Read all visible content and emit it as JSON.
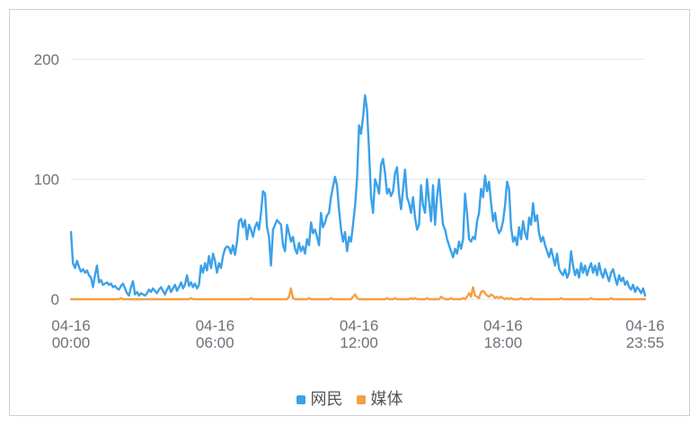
{
  "chart_data": {
    "type": "line",
    "x": [
      "04-16 00:00",
      "04-16 00:05",
      "04-16 00:10",
      "04-16 00:15",
      "04-16 00:20",
      "04-16 00:25",
      "04-16 00:30",
      "04-16 00:35",
      "04-16 00:40",
      "04-16 00:45",
      "04-16 00:50",
      "04-16 00:55",
      "04-16 01:00",
      "04-16 01:05",
      "04-16 01:10",
      "04-16 01:15",
      "04-16 01:20",
      "04-16 01:25",
      "04-16 01:30",
      "04-16 01:35",
      "04-16 01:40",
      "04-16 01:45",
      "04-16 01:50",
      "04-16 01:55",
      "04-16 02:00",
      "04-16 02:05",
      "04-16 02:10",
      "04-16 02:15",
      "04-16 02:20",
      "04-16 02:25",
      "04-16 02:30",
      "04-16 02:35",
      "04-16 02:40",
      "04-16 02:45",
      "04-16 02:50",
      "04-16 02:55",
      "04-16 03:00",
      "04-16 03:05",
      "04-16 03:10",
      "04-16 03:15",
      "04-16 03:20",
      "04-16 03:25",
      "04-16 03:30",
      "04-16 03:35",
      "04-16 03:40",
      "04-16 03:45",
      "04-16 03:50",
      "04-16 03:55",
      "04-16 04:00",
      "04-16 04:05",
      "04-16 04:10",
      "04-16 04:15",
      "04-16 04:20",
      "04-16 04:25",
      "04-16 04:30",
      "04-16 04:35",
      "04-16 04:40",
      "04-16 04:45",
      "04-16 04:50",
      "04-16 04:55",
      "04-16 05:00",
      "04-16 05:05",
      "04-16 05:10",
      "04-16 05:15",
      "04-16 05:20",
      "04-16 05:25",
      "04-16 05:30",
      "04-16 05:35",
      "04-16 05:40",
      "04-16 05:45",
      "04-16 05:50",
      "04-16 05:55",
      "04-16 06:00",
      "04-16 06:05",
      "04-16 06:10",
      "04-16 06:15",
      "04-16 06:20",
      "04-16 06:25",
      "04-16 06:30",
      "04-16 06:35",
      "04-16 06:40",
      "04-16 06:45",
      "04-16 06:50",
      "04-16 06:55",
      "04-16 07:00",
      "04-16 07:05",
      "04-16 07:10",
      "04-16 07:15",
      "04-16 07:20",
      "04-16 07:25",
      "04-16 07:30",
      "04-16 07:35",
      "04-16 07:40",
      "04-16 07:45",
      "04-16 07:50",
      "04-16 07:55",
      "04-16 08:00",
      "04-16 08:05",
      "04-16 08:10",
      "04-16 08:15",
      "04-16 08:20",
      "04-16 08:25",
      "04-16 08:30",
      "04-16 08:35",
      "04-16 08:40",
      "04-16 08:45",
      "04-16 08:50",
      "04-16 08:55",
      "04-16 09:00",
      "04-16 09:05",
      "04-16 09:10",
      "04-16 09:15",
      "04-16 09:20",
      "04-16 09:25",
      "04-16 09:30",
      "04-16 09:35",
      "04-16 09:40",
      "04-16 09:45",
      "04-16 09:50",
      "04-16 09:55",
      "04-16 10:00",
      "04-16 10:05",
      "04-16 10:10",
      "04-16 10:15",
      "04-16 10:20",
      "04-16 10:25",
      "04-16 10:30",
      "04-16 10:35",
      "04-16 10:40",
      "04-16 10:45",
      "04-16 10:50",
      "04-16 10:55",
      "04-16 11:00",
      "04-16 11:05",
      "04-16 11:10",
      "04-16 11:15",
      "04-16 11:20",
      "04-16 11:25",
      "04-16 11:30",
      "04-16 11:35",
      "04-16 11:40",
      "04-16 11:45",
      "04-16 11:50",
      "04-16 11:55",
      "04-16 12:00",
      "04-16 12:05",
      "04-16 12:10",
      "04-16 12:15",
      "04-16 12:20",
      "04-16 12:25",
      "04-16 12:30",
      "04-16 12:35",
      "04-16 12:40",
      "04-16 12:45",
      "04-16 12:50",
      "04-16 12:55",
      "04-16 13:00",
      "04-16 13:05",
      "04-16 13:10",
      "04-16 13:15",
      "04-16 13:20",
      "04-16 13:25",
      "04-16 13:30",
      "04-16 13:35",
      "04-16 13:40",
      "04-16 13:45",
      "04-16 13:50",
      "04-16 13:55",
      "04-16 14:00",
      "04-16 14:05",
      "04-16 14:10",
      "04-16 14:15",
      "04-16 14:20",
      "04-16 14:25",
      "04-16 14:30",
      "04-16 14:35",
      "04-16 14:40",
      "04-16 14:45",
      "04-16 14:50",
      "04-16 14:55",
      "04-16 15:00",
      "04-16 15:05",
      "04-16 15:10",
      "04-16 15:15",
      "04-16 15:20",
      "04-16 15:25",
      "04-16 15:30",
      "04-16 15:35",
      "04-16 15:40",
      "04-16 15:45",
      "04-16 15:50",
      "04-16 15:55",
      "04-16 16:00",
      "04-16 16:05",
      "04-16 16:10",
      "04-16 16:15",
      "04-16 16:20",
      "04-16 16:25",
      "04-16 16:30",
      "04-16 16:35",
      "04-16 16:40",
      "04-16 16:45",
      "04-16 16:50",
      "04-16 16:55",
      "04-16 17:00",
      "04-16 17:05",
      "04-16 17:10",
      "04-16 17:15",
      "04-16 17:20",
      "04-16 17:25",
      "04-16 17:30",
      "04-16 17:35",
      "04-16 17:40",
      "04-16 17:45",
      "04-16 17:50",
      "04-16 17:55",
      "04-16 18:00",
      "04-16 18:05",
      "04-16 18:10",
      "04-16 18:15",
      "04-16 18:20",
      "04-16 18:25",
      "04-16 18:30",
      "04-16 18:35",
      "04-16 18:40",
      "04-16 18:45",
      "04-16 18:50",
      "04-16 18:55",
      "04-16 19:00",
      "04-16 19:05",
      "04-16 19:10",
      "04-16 19:15",
      "04-16 19:20",
      "04-16 19:25",
      "04-16 19:30",
      "04-16 19:35",
      "04-16 19:40",
      "04-16 19:45",
      "04-16 19:50",
      "04-16 19:55",
      "04-16 20:00",
      "04-16 20:05",
      "04-16 20:10",
      "04-16 20:15",
      "04-16 20:20",
      "04-16 20:25",
      "04-16 20:30",
      "04-16 20:35",
      "04-16 20:40",
      "04-16 20:45",
      "04-16 20:50",
      "04-16 20:55",
      "04-16 21:00",
      "04-16 21:05",
      "04-16 21:10",
      "04-16 21:15",
      "04-16 21:20",
      "04-16 21:25",
      "04-16 21:30",
      "04-16 21:35",
      "04-16 21:40",
      "04-16 21:45",
      "04-16 21:50",
      "04-16 21:55",
      "04-16 22:00",
      "04-16 22:05",
      "04-16 22:10",
      "04-16 22:15",
      "04-16 22:20",
      "04-16 22:25",
      "04-16 22:30",
      "04-16 22:35",
      "04-16 22:40",
      "04-16 22:45",
      "04-16 22:50",
      "04-16 22:55",
      "04-16 23:00",
      "04-16 23:05",
      "04-16 23:10",
      "04-16 23:15",
      "04-16 23:20",
      "04-16 23:25",
      "04-16 23:30",
      "04-16 23:35",
      "04-16 23:40",
      "04-16 23:45",
      "04-16 23:50",
      "04-16 23:55"
    ],
    "x_tick_labels": [
      "04-16 00:00",
      "04-16 06:00",
      "04-16 12:00",
      "04-16 18:00",
      "04-16 23:55"
    ],
    "y_ticks": [
      0,
      100,
      200
    ],
    "ylim": [
      0,
      200
    ],
    "grid": "horizontal",
    "legend_position": "bottom-center",
    "series": [
      {
        "name": "网民",
        "color": "#3BA1E9",
        "values": [
          56,
          30,
          26,
          32,
          27,
          23,
          25,
          22,
          24,
          20,
          18,
          10,
          20,
          28,
          14,
          16,
          12,
          13,
          14,
          12,
          13,
          10,
          11,
          9,
          8,
          11,
          13,
          9,
          5,
          3,
          10,
          15,
          4,
          6,
          3,
          5,
          4,
          3,
          5,
          8,
          6,
          9,
          7,
          5,
          8,
          10,
          7,
          4,
          8,
          11,
          6,
          9,
          12,
          7,
          10,
          14,
          9,
          12,
          20,
          11,
          14,
          10,
          13,
          9,
          12,
          28,
          22,
          30,
          24,
          36,
          26,
          38,
          32,
          22,
          30,
          26,
          36,
          42,
          44,
          43,
          38,
          45,
          37,
          48,
          65,
          67,
          60,
          66,
          50,
          62,
          58,
          52,
          60,
          64,
          58,
          72,
          90,
          88,
          60,
          52,
          28,
          58,
          62,
          66,
          64,
          62,
          45,
          40,
          62,
          55,
          48,
          52,
          42,
          38,
          47,
          40,
          44,
          38,
          50,
          45,
          64,
          55,
          58,
          52,
          45,
          72,
          60,
          64,
          70,
          72,
          85,
          94,
          102,
          95,
          75,
          58,
          48,
          56,
          40,
          52,
          48,
          62,
          78,
          100,
          145,
          138,
          152,
          170,
          158,
          125,
          85,
          72,
          100,
          95,
          88,
          112,
          117,
          105,
          88,
          92,
          86,
          90,
          105,
          110,
          88,
          75,
          92,
          108,
          85,
          80,
          72,
          85,
          68,
          58,
          62,
          95,
          78,
          72,
          100,
          82,
          65,
          95,
          62,
          85,
          100,
          80,
          62,
          58,
          50,
          45,
          40,
          35,
          42,
          38,
          48,
          42,
          50,
          88,
          72,
          50,
          48,
          52,
          50,
          65,
          72,
          92,
          85,
          103,
          90,
          98,
          80,
          65,
          72,
          60,
          55,
          58,
          65,
          78,
          98,
          92,
          60,
          48,
          52,
          45,
          60,
          50,
          65,
          55,
          50,
          68,
          62,
          80,
          65,
          70,
          55,
          48,
          52,
          45,
          40,
          35,
          42,
          35,
          28,
          38,
          25,
          22,
          20,
          25,
          18,
          22,
          40,
          28,
          20,
          25,
          18,
          30,
          22,
          28,
          20,
          26,
          30,
          22,
          28,
          20,
          30,
          22,
          18,
          25,
          20,
          15,
          22,
          25,
          18,
          12,
          20,
          15,
          18,
          12,
          15,
          10,
          8,
          12,
          6,
          10,
          8,
          5,
          9,
          3
        ]
      },
      {
        "name": "媒体",
        "color": "#F5A043",
        "values": [
          0,
          0,
          0,
          0,
          0,
          0,
          0,
          0,
          0,
          0,
          0,
          0,
          0,
          0,
          0,
          0,
          0,
          0,
          0,
          0,
          0,
          0,
          0,
          0,
          0,
          1,
          0,
          0,
          0,
          0,
          0,
          0,
          0,
          0,
          0,
          0,
          0,
          0,
          0,
          0,
          0,
          0,
          0,
          0,
          0,
          0,
          0,
          0,
          0,
          0,
          0,
          0,
          0,
          0,
          0,
          0,
          0,
          0,
          0,
          0,
          1,
          0,
          0,
          0,
          0,
          0,
          0,
          0,
          0,
          0,
          0,
          0,
          0,
          0,
          0,
          0,
          0,
          0,
          0,
          0,
          0,
          0,
          0,
          0,
          0,
          0,
          0,
          0,
          0,
          0,
          1,
          0,
          0,
          0,
          0,
          0,
          0,
          0,
          0,
          0,
          0,
          0,
          0,
          0,
          0,
          0,
          0,
          0,
          0,
          2,
          9,
          1,
          0,
          0,
          0,
          0,
          0,
          0,
          0,
          1,
          0,
          0,
          0,
          0,
          0,
          0,
          0,
          0,
          0,
          0,
          1,
          0,
          0,
          0,
          0,
          0,
          0,
          0,
          0,
          0,
          0,
          2,
          4,
          1,
          0,
          0,
          0,
          0,
          0,
          0,
          0,
          0,
          0,
          0,
          0,
          0,
          0,
          0,
          1,
          0,
          0,
          0,
          1,
          0,
          0,
          0,
          0,
          0,
          0,
          0,
          1,
          0,
          1,
          0,
          0,
          0,
          0,
          0,
          1,
          0,
          0,
          0,
          0,
          0,
          0,
          2,
          1,
          0,
          0,
          0,
          1,
          0,
          0,
          0,
          0,
          0,
          1,
          0,
          2,
          5,
          2,
          10,
          3,
          2,
          1,
          6,
          7,
          5,
          3,
          2,
          4,
          3,
          1,
          2,
          1,
          2,
          1,
          0,
          1,
          0,
          1,
          0,
          0,
          0,
          0,
          1,
          0,
          0,
          0,
          0,
          1,
          0,
          0,
          0,
          0,
          0,
          0,
          0,
          0,
          0,
          0,
          0,
          0,
          0,
          0,
          1,
          0,
          0,
          0,
          0,
          0,
          0,
          0,
          0,
          0,
          0,
          0,
          0,
          0,
          0,
          1,
          0,
          0,
          0,
          0,
          0,
          0,
          0,
          0,
          0,
          1,
          0,
          0,
          0,
          0,
          0,
          0,
          0,
          0,
          0,
          0,
          0,
          0,
          0,
          0,
          0,
          0,
          0
        ]
      }
    ]
  }
}
